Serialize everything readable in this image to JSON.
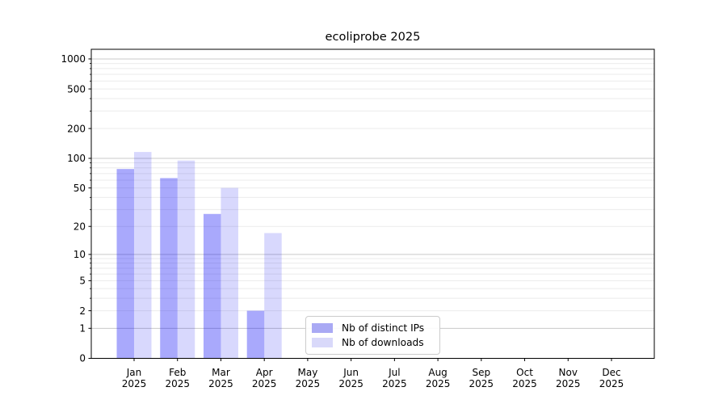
{
  "chart_data": {
    "type": "bar",
    "title": "ecoliprobe 2025",
    "x_categories": [
      "Jan",
      "Feb",
      "Mar",
      "Apr",
      "May",
      "Jun",
      "Jul",
      "Aug",
      "Sep",
      "Oct",
      "Nov",
      "Dec"
    ],
    "x_year": "2025",
    "yscale": "log1p",
    "ytick_labels": [
      "0",
      "1",
      "2",
      "5",
      "10",
      "20",
      "50",
      "100",
      "200",
      "500",
      "1000"
    ],
    "ytick_values": [
      0,
      1,
      2,
      5,
      10,
      20,
      50,
      100,
      200,
      500,
      1000
    ],
    "ylim": [
      0,
      1250
    ],
    "grid": "horizontal major and minor, light gray",
    "legend_position": "lower center inside plot",
    "series": [
      {
        "name": "Nb of distinct IPs",
        "color": "rgba(10,10,245,0.35)",
        "solid_color": "#a9a9f4",
        "values": [
          78,
          63,
          27,
          2,
          0,
          0,
          0,
          0,
          0,
          0,
          0,
          0
        ]
      },
      {
        "name": "Nb of downloads",
        "color": "rgba(10,10,245,0.16)",
        "solid_color": "#d9d9fa",
        "values": [
          116,
          95,
          50,
          17,
          0,
          0,
          0,
          0,
          0,
          0,
          0,
          0
        ]
      }
    ]
  }
}
